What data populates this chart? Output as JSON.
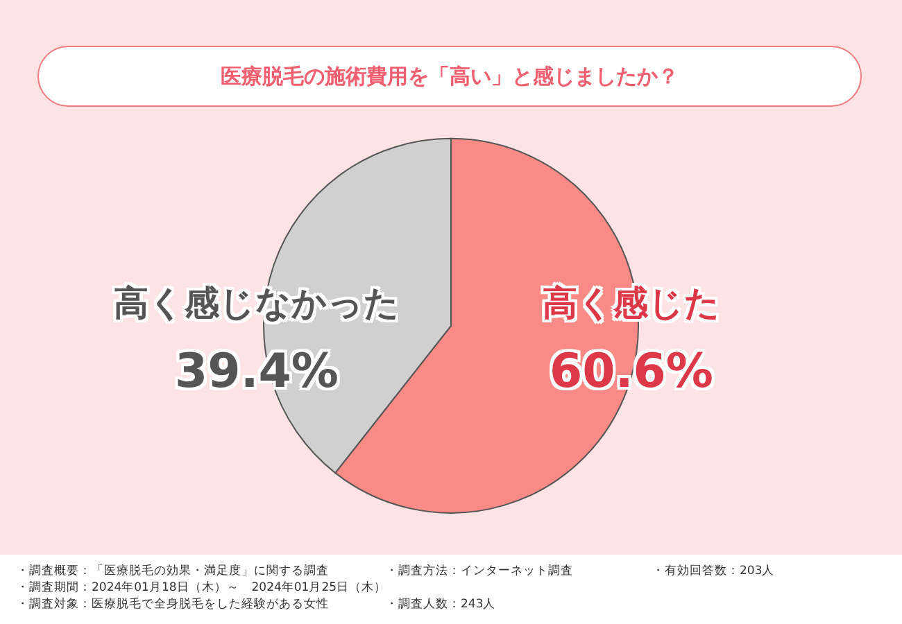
{
  "chart_data": {
    "type": "pie",
    "title": "医療脱毛の施術費用を「高い」と感じましたか？",
    "categories": [
      "高く感じた",
      "高く感じなかった"
    ],
    "values": [
      60.6,
      39.4
    ],
    "colors": [
      "#f98a86",
      "#d0d0d0"
    ],
    "value_labels": [
      "60.6%",
      "39.4%"
    ],
    "annotations": [
      "・調査概要：「医療脱毛の効果・満足度」に関する調査",
      "・調査期間：2024年01月18日（木）～　2024年01月25日（木）",
      "・調査対象：医療脱毛で全身脱毛をした経験がある女性",
      "・調査方法：インターネット調査",
      "・調査人数：243人",
      "・有効回答数：203人"
    ]
  }
}
